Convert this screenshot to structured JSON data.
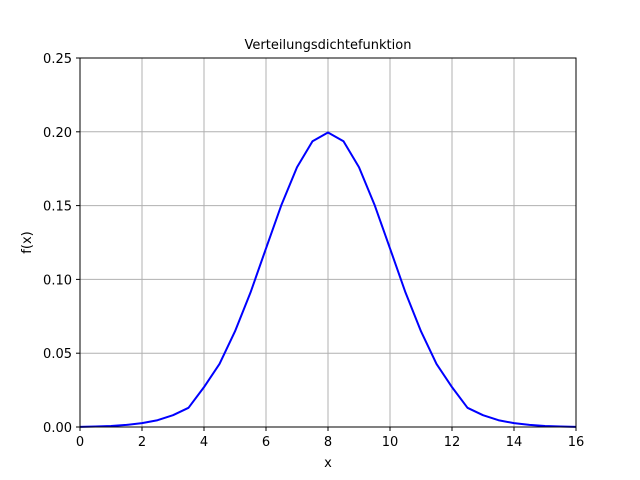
{
  "chart_data": {
    "type": "line",
    "title": "Verteilungsdichtefunktion",
    "xlabel": "x",
    "ylabel": "f(x)",
    "xlim": [
      0,
      16
    ],
    "ylim": [
      0,
      0.25
    ],
    "grid": true,
    "x_ticks": [
      0,
      2,
      4,
      6,
      8,
      10,
      12,
      14,
      16
    ],
    "y_ticks": [
      0.0,
      0.05,
      0.1,
      0.15,
      0.2,
      0.25
    ],
    "x_tick_labels": [
      "0",
      "2",
      "4",
      "6",
      "8",
      "10",
      "12",
      "14",
      "16"
    ],
    "y_tick_labels": [
      "0.00",
      "0.05",
      "0.10",
      "0.15",
      "0.20",
      "0.25"
    ],
    "series": [
      {
        "color": "#0000ff",
        "x": [
          0,
          0.5,
          1,
          1.5,
          2,
          2.5,
          3,
          3.5,
          4,
          4.5,
          5,
          5.5,
          6,
          6.5,
          7,
          7.5,
          8,
          8.5,
          9,
          9.5,
          10,
          10.5,
          11,
          11.5,
          12,
          12.5,
          13,
          13.5,
          14,
          14.5,
          15,
          15.5,
          16
        ],
        "y": [
          0.0001,
          0.0003,
          0.0007,
          0.0014,
          0.0026,
          0.0046,
          0.008,
          0.013,
          0.027,
          0.0427,
          0.0648,
          0.0911,
          0.121,
          0.1506,
          0.176,
          0.1936,
          0.1995,
          0.1936,
          0.176,
          0.1506,
          0.121,
          0.0911,
          0.0648,
          0.0427,
          0.027,
          0.013,
          0.008,
          0.0046,
          0.0026,
          0.0014,
          0.0007,
          0.0003,
          0.0001
        ]
      }
    ]
  }
}
